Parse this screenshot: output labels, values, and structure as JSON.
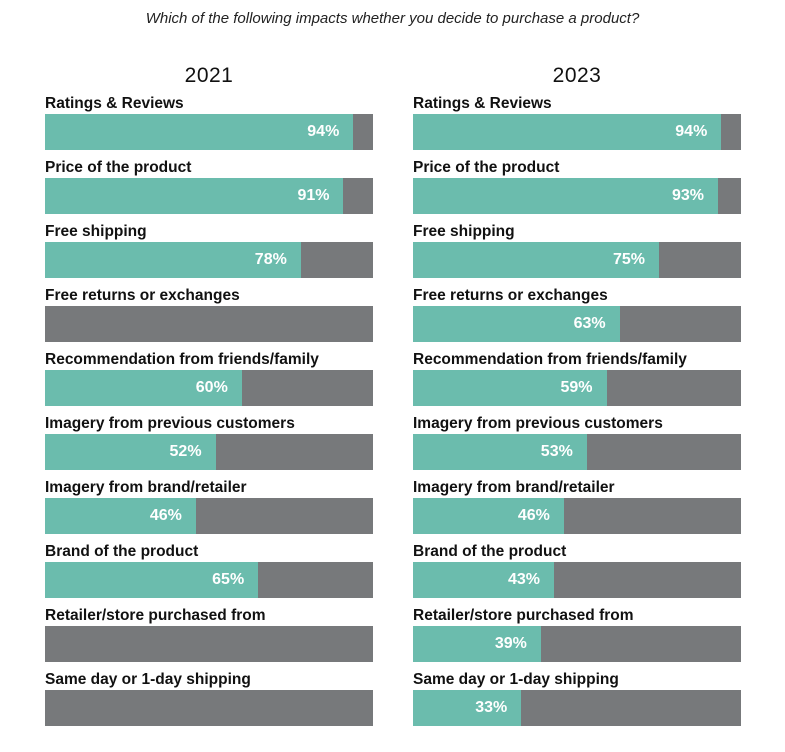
{
  "chart_data": {
    "type": "bar",
    "orientation": "horizontal",
    "title": "Which of the following impacts whether you decide to purchase a product?",
    "xlim": [
      0,
      100
    ],
    "colors": {
      "fill": "#6bbcad",
      "track": "#77797b"
    },
    "panels": [
      {
        "year": "2021",
        "bars": [
          {
            "label": "Ratings & Reviews",
            "value": 94,
            "value_label": "94%"
          },
          {
            "label": "Price of the product",
            "value": 91,
            "value_label": "91%"
          },
          {
            "label": "Free shipping",
            "value": 78,
            "value_label": "78%"
          },
          {
            "label": "Free returns or exchanges",
            "value": null,
            "value_label": ""
          },
          {
            "label": "Recommendation from friends/family",
            "value": 60,
            "value_label": "60%"
          },
          {
            "label": "Imagery from previous customers",
            "value": 52,
            "value_label": "52%"
          },
          {
            "label": "Imagery from brand/retailer",
            "value": 46,
            "value_label": "46%"
          },
          {
            "label": "Brand of the product",
            "value": 65,
            "value_label": "65%"
          },
          {
            "label": "Retailer/store purchased from",
            "value": null,
            "value_label": ""
          },
          {
            "label": "Same day or 1-day shipping",
            "value": null,
            "value_label": ""
          }
        ]
      },
      {
        "year": "2023",
        "bars": [
          {
            "label": "Ratings & Reviews",
            "value": 94,
            "value_label": "94%"
          },
          {
            "label": "Price of the product",
            "value": 93,
            "value_label": "93%"
          },
          {
            "label": "Free shipping",
            "value": 75,
            "value_label": "75%"
          },
          {
            "label": "Free returns or exchanges",
            "value": 63,
            "value_label": "63%"
          },
          {
            "label": "Recommendation from friends/family",
            "value": 59,
            "value_label": "59%"
          },
          {
            "label": "Imagery from previous customers",
            "value": 53,
            "value_label": "53%"
          },
          {
            "label": "Imagery from brand/retailer",
            "value": 46,
            "value_label": "46%"
          },
          {
            "label": "Brand of the product",
            "value": 43,
            "value_label": "43%"
          },
          {
            "label": "Retailer/store purchased from",
            "value": 39,
            "value_label": "39%"
          },
          {
            "label": "Same day or 1-day shipping",
            "value": 33,
            "value_label": "33%"
          }
        ]
      }
    ]
  }
}
